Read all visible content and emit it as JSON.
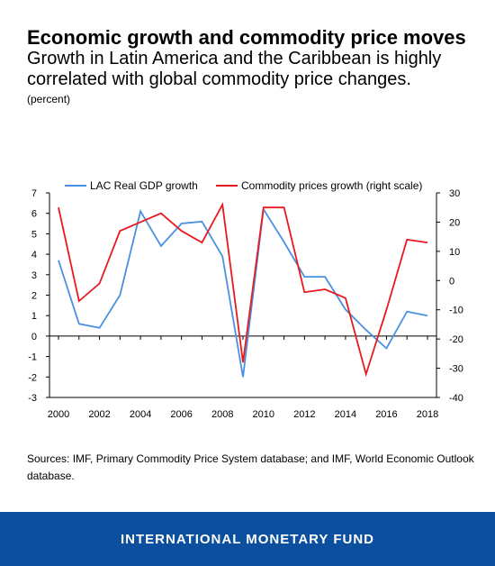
{
  "header": {
    "title": "Economic growth and commodity price moves",
    "subtitle": "Growth in Latin America and the Caribbean is highly correlated with global commodity price changes.",
    "unit": "(percent)"
  },
  "colors": {
    "gdp": "#4a90e2",
    "commodity": "#e8191f",
    "footer_bg": "#0b4f9e"
  },
  "chart_data": {
    "type": "line",
    "x": [
      2000,
      2001,
      2002,
      2003,
      2004,
      2005,
      2006,
      2007,
      2008,
      2009,
      2010,
      2011,
      2012,
      2013,
      2014,
      2015,
      2016,
      2017,
      2018
    ],
    "xticks": [
      "2000",
      "2002",
      "2004",
      "2006",
      "2008",
      "2010",
      "2012",
      "2014",
      "2016",
      "2018"
    ],
    "ylim_left": [
      -3,
      7
    ],
    "yticks_left": [
      "7",
      "6",
      "5",
      "4",
      "3",
      "2",
      "1",
      "0",
      "-1",
      "-2",
      "-3"
    ],
    "ylim_right": [
      -40,
      30
    ],
    "yticks_right": [
      "30",
      "20",
      "10",
      "0",
      "-10",
      "-20",
      "-30",
      "-40"
    ],
    "legend_position": "top",
    "grid": false,
    "series": [
      {
        "name": "LAC Real GDP growth",
        "axis": "left",
        "color": "#4a90e2",
        "values": [
          3.7,
          0.6,
          0.4,
          2.0,
          6.1,
          4.4,
          5.5,
          5.6,
          3.9,
          -2.0,
          6.2,
          4.6,
          2.9,
          2.9,
          1.3,
          0.3,
          -0.6,
          1.2,
          1.0
        ]
      },
      {
        "name": "Commodity prices growth (right scale)",
        "axis": "right",
        "color": "#e8191f",
        "values": [
          25,
          -7,
          -1,
          17,
          20,
          23,
          17,
          13,
          26,
          -28,
          25,
          25,
          -4,
          -3,
          -6,
          -32,
          -10,
          14,
          13
        ]
      }
    ]
  },
  "sources": "Sources: IMF, Primary Commodity Price System database; and IMF, World Economic Outlook database.",
  "footer": {
    "label": "INTERNATIONAL MONETARY FUND"
  }
}
